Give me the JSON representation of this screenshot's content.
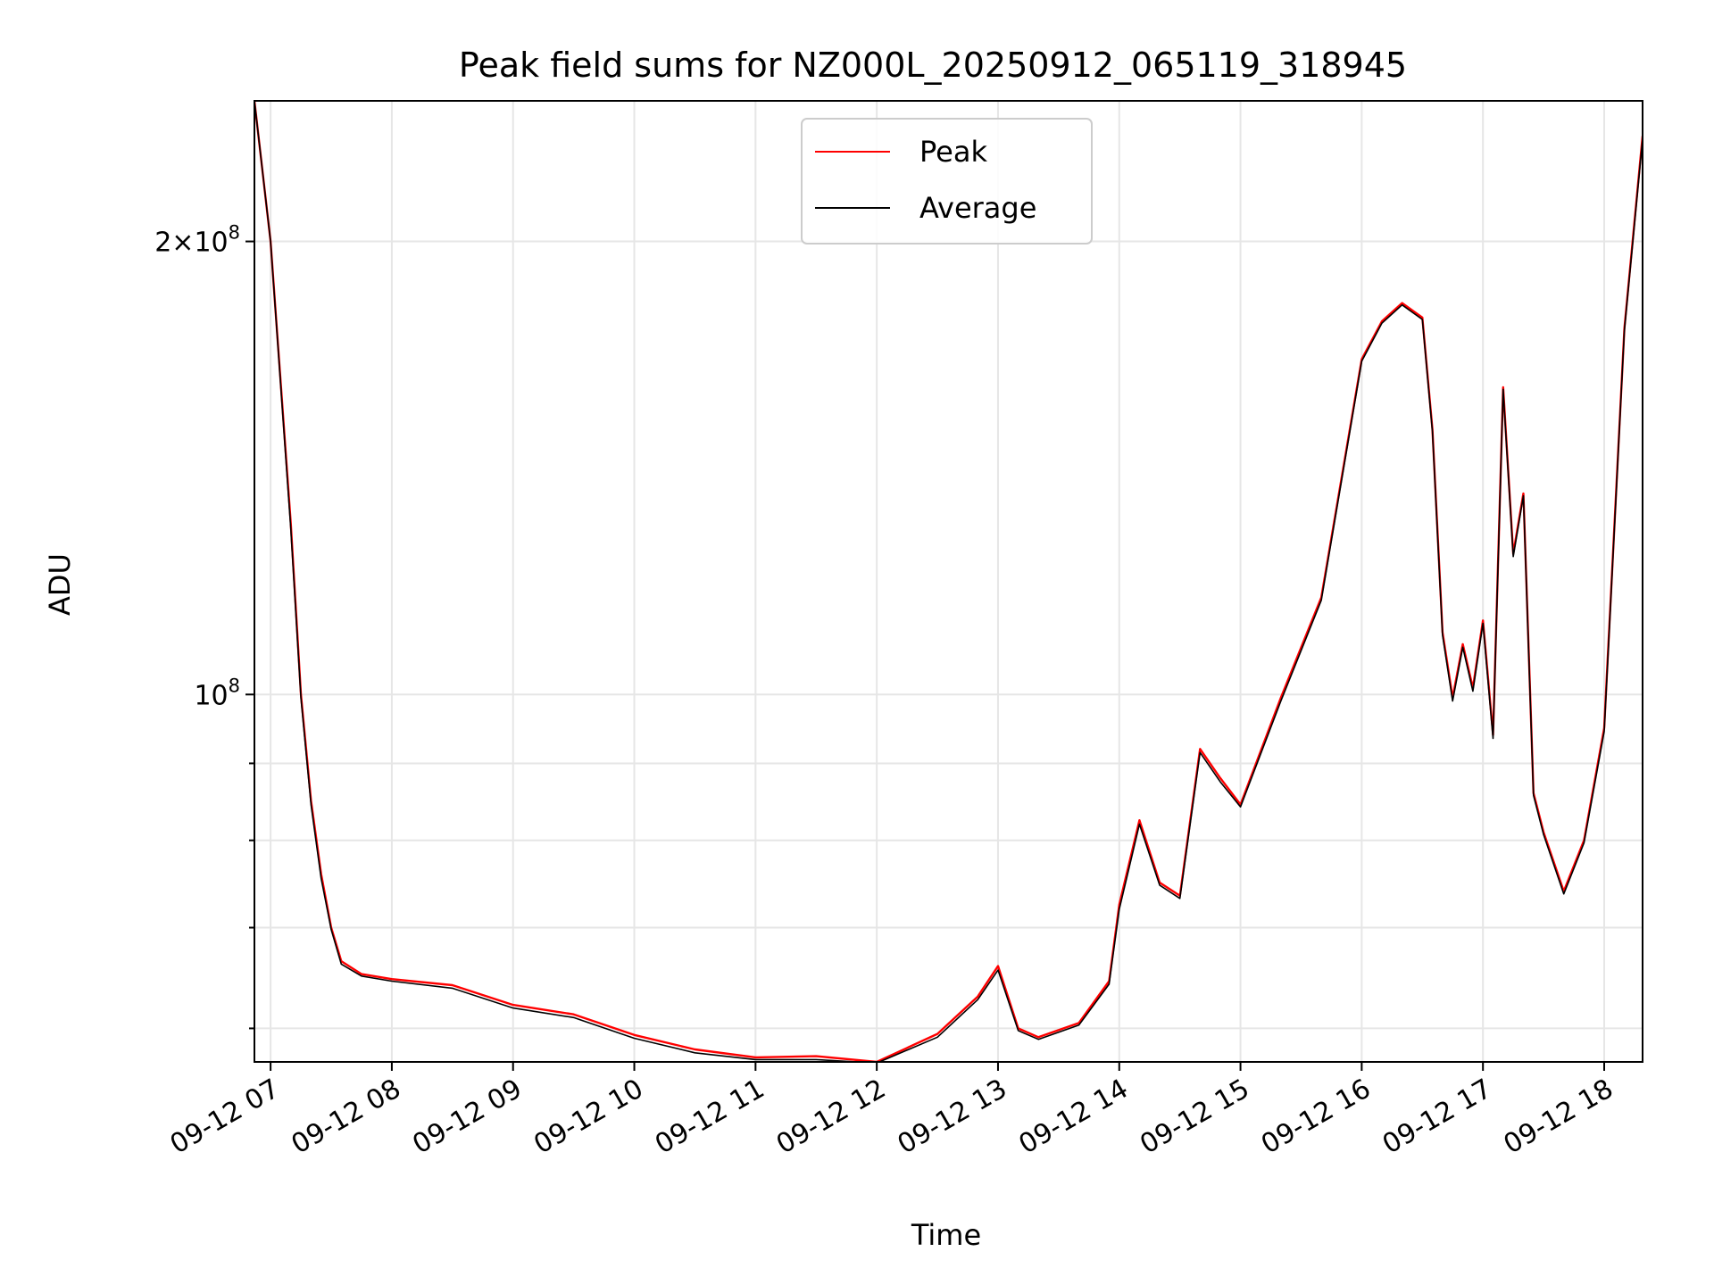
{
  "chart_data": {
    "type": "line",
    "title": "Peak field sums for NZ000L_20250912_065119_318945",
    "xlabel": "Time",
    "ylabel": "ADU",
    "y_scale": "log",
    "xlim": [
      "2025-09-12 06:52",
      "2025-09-12 18:19"
    ],
    "ylim": [
      57000000,
      248000000
    ],
    "x_ticks": [
      "09-12 07",
      "09-12 08",
      "09-12 09",
      "09-12 10",
      "09-12 11",
      "09-12 12",
      "09-12 13",
      "09-12 14",
      "09-12 15",
      "09-12 16",
      "09-12 17",
      "09-12 18"
    ],
    "y_ticks": [
      {
        "value": 100000000,
        "base": "10",
        "exp": "8",
        "mant": ""
      },
      {
        "value": 200000000,
        "base": "10",
        "exp": "8",
        "mant": "2×"
      }
    ],
    "y_minor_ticks": [
      60000000,
      70000000,
      80000000,
      90000000
    ],
    "grid": true,
    "legend": {
      "position": "top-center",
      "entries": [
        "Peak",
        "Average"
      ]
    },
    "series": [
      {
        "name": "Peak",
        "color": "#ff0000",
        "x": [
          "2025-09-12 06:52",
          "2025-09-12 07:00",
          "2025-09-12 07:10",
          "2025-09-12 07:15",
          "2025-09-12 07:20",
          "2025-09-12 07:25",
          "2025-09-12 07:30",
          "2025-09-12 07:35",
          "2025-09-12 07:45",
          "2025-09-12 08:00",
          "2025-09-12 08:30",
          "2025-09-12 09:00",
          "2025-09-12 09:30",
          "2025-09-12 10:00",
          "2025-09-12 10:30",
          "2025-09-12 11:00",
          "2025-09-12 11:30",
          "2025-09-12 12:00",
          "2025-09-12 12:30",
          "2025-09-12 12:50",
          "2025-09-12 13:00",
          "2025-09-12 13:10",
          "2025-09-12 13:20",
          "2025-09-12 13:40",
          "2025-09-12 13:55",
          "2025-09-12 14:00",
          "2025-09-12 14:10",
          "2025-09-12 14:20",
          "2025-09-12 14:30",
          "2025-09-12 14:40",
          "2025-09-12 14:50",
          "2025-09-12 15:00",
          "2025-09-12 15:20",
          "2025-09-12 15:40",
          "2025-09-12 16:00",
          "2025-09-12 16:10",
          "2025-09-12 16:20",
          "2025-09-12 16:30",
          "2025-09-12 16:35",
          "2025-09-12 16:40",
          "2025-09-12 16:45",
          "2025-09-12 16:50",
          "2025-09-12 16:55",
          "2025-09-12 17:00",
          "2025-09-12 17:05",
          "2025-09-12 17:10",
          "2025-09-12 17:15",
          "2025-09-12 17:20",
          "2025-09-12 17:25",
          "2025-09-12 17:30",
          "2025-09-12 17:40",
          "2025-09-12 17:50",
          "2025-09-12 18:00",
          "2025-09-12 18:10",
          "2025-09-12 18:19"
        ],
        "y": [
          248000000,
          200000000,
          130000000,
          100000000,
          85000000,
          76000000,
          70000000,
          66500000,
          65200000,
          64700000,
          64100000,
          62200000,
          61300000,
          59400000,
          58100000,
          57400000,
          57500000,
          57000000,
          59500000,
          63000000,
          66000000,
          60000000,
          59200000,
          60500000,
          64500000,
          72500000,
          82500000,
          75000000,
          73500000,
          92000000,
          88000000,
          84500000,
          99500000,
          116000000,
          167000000,
          177000000,
          182000000,
          178000000,
          150000000,
          110000000,
          99500000,
          108000000,
          101000000,
          112000000,
          94000000,
          160000000,
          124000000,
          136000000,
          86000000,
          81000000,
          74000000,
          80000000,
          95000000,
          175000000,
          235000000
        ]
      },
      {
        "name": "Average",
        "color": "#000000",
        "x": [
          "2025-09-12 06:52",
          "2025-09-12 07:00",
          "2025-09-12 07:10",
          "2025-09-12 07:15",
          "2025-09-12 07:20",
          "2025-09-12 07:25",
          "2025-09-12 07:30",
          "2025-09-12 07:35",
          "2025-09-12 07:45",
          "2025-09-12 08:00",
          "2025-09-12 08:30",
          "2025-09-12 09:00",
          "2025-09-12 09:30",
          "2025-09-12 10:00",
          "2025-09-12 10:30",
          "2025-09-12 11:00",
          "2025-09-12 11:30",
          "2025-09-12 12:00",
          "2025-09-12 12:30",
          "2025-09-12 12:50",
          "2025-09-12 13:00",
          "2025-09-12 13:10",
          "2025-09-12 13:20",
          "2025-09-12 13:40",
          "2025-09-12 13:55",
          "2025-09-12 14:00",
          "2025-09-12 14:10",
          "2025-09-12 14:20",
          "2025-09-12 14:30",
          "2025-09-12 14:40",
          "2025-09-12 14:50",
          "2025-09-12 15:00",
          "2025-09-12 15:20",
          "2025-09-12 15:40",
          "2025-09-12 16:00",
          "2025-09-12 16:10",
          "2025-09-12 16:20",
          "2025-09-12 16:30",
          "2025-09-12 16:35",
          "2025-09-12 16:40",
          "2025-09-12 16:45",
          "2025-09-12 16:50",
          "2025-09-12 16:55",
          "2025-09-12 17:00",
          "2025-09-12 17:05",
          "2025-09-12 17:10",
          "2025-09-12 17:15",
          "2025-09-12 17:20",
          "2025-09-12 17:25",
          "2025-09-12 17:30",
          "2025-09-12 17:40",
          "2025-09-12 17:50",
          "2025-09-12 18:00",
          "2025-09-12 18:10",
          "2025-09-12 18:19"
        ],
        "y": [
          248000000,
          200000000,
          129000000,
          99500000,
          84500000,
          75500000,
          69800000,
          66200000,
          65000000,
          64500000,
          63800000,
          61900000,
          61000000,
          59100000,
          57800000,
          57200000,
          57200000,
          56900000,
          59200000,
          62700000,
          65600000,
          59800000,
          59000000,
          60300000,
          64200000,
          72000000,
          82000000,
          74700000,
          73200000,
          91500000,
          87500000,
          84200000,
          99000000,
          115500000,
          166500000,
          176500000,
          181500000,
          177500000,
          149500000,
          109500000,
          99000000,
          107500000,
          100500000,
          111500000,
          93500000,
          159500000,
          123500000,
          135500000,
          85700000,
          80700000,
          73700000,
          79700000,
          94500000,
          174500000,
          234000000
        ]
      }
    ]
  }
}
